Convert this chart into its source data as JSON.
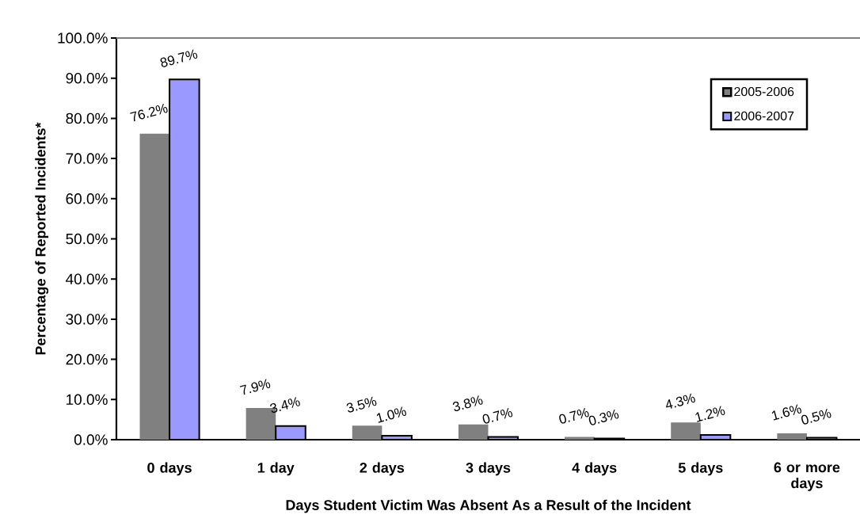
{
  "chart_data": {
    "type": "bar",
    "categories": [
      "0 days",
      "1 day",
      "2 days",
      "3 days",
      "4 days",
      "5 days",
      "6 or more days"
    ],
    "series": [
      {
        "name": "2005-2006",
        "color": "#808080",
        "values": [
          76.2,
          7.9,
          3.5,
          3.8,
          0.7,
          4.3,
          1.6
        ],
        "value_labels": [
          "76.2%",
          "7.9%",
          "3.5%",
          "3.8%",
          "0.7%",
          "4.3%",
          "1.6%"
        ]
      },
      {
        "name": "2006-2007",
        "color": "#9999ff",
        "values": [
          89.7,
          3.4,
          1.0,
          0.7,
          0.3,
          1.2,
          0.5
        ],
        "value_labels": [
          "89.7%",
          "3.4%",
          "1.0%",
          "0.7%",
          "0.3%",
          "1.2%",
          "0.5%"
        ]
      }
    ],
    "xlabel": "Days Student Victim Was Absent  As a Result  of the Incident",
    "ylabel": "Percentage of Reported Incidents*",
    "ylim": [
      0,
      100
    ],
    "yticks": [
      {
        "value": 0,
        "label": "0.0%"
      },
      {
        "value": 10,
        "label": "10.0%"
      },
      {
        "value": 20,
        "label": "20.0%"
      },
      {
        "value": 30,
        "label": "30.0%"
      },
      {
        "value": 40,
        "label": "40.0%"
      },
      {
        "value": 50,
        "label": "50.0%"
      },
      {
        "value": 60,
        "label": "60.0%"
      },
      {
        "value": 70,
        "label": "70.0%"
      },
      {
        "value": 80,
        "label": "80.0%"
      },
      {
        "value": 90,
        "label": "90.0%"
      },
      {
        "value": 100,
        "label": "100.0%"
      }
    ],
    "legend": "top right",
    "grid": false
  }
}
